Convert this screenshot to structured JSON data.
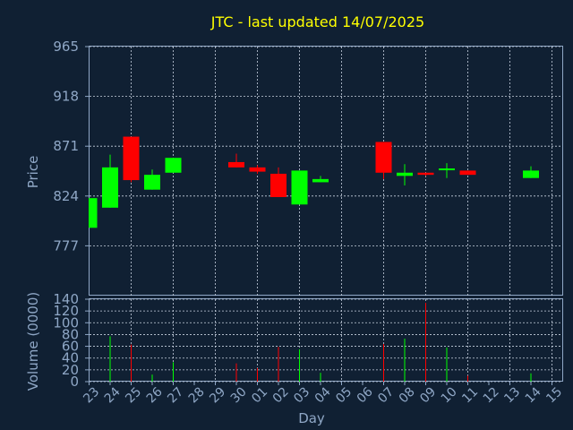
{
  "chart_data": [
    {
      "type": "candlestick",
      "title": "JTC - last updated 14/07/2025",
      "ylabel": "Price",
      "ylim": [
        730,
        965
      ],
      "yticks": [
        965,
        918,
        871,
        824,
        777
      ],
      "grid": true,
      "colors": {
        "up": "#00ff00",
        "down": "#ff0000",
        "grid": "#c8d2e0",
        "axis": "#8fa7c6"
      },
      "candles": [
        {
          "x": "23",
          "open": 794,
          "close": 822,
          "high": 822,
          "low": 794
        },
        {
          "x": "24",
          "open": 813,
          "close": 851,
          "high": 863,
          "low": 813
        },
        {
          "x": "25",
          "open": 880,
          "close": 839,
          "high": 880,
          "low": 837
        },
        {
          "x": "26",
          "open": 830,
          "close": 844,
          "high": 849,
          "low": 830
        },
        {
          "x": "27",
          "open": 846,
          "close": 860,
          "high": 860,
          "low": 846
        },
        {
          "x": "30",
          "open": 856,
          "close": 851,
          "high": 864,
          "low": 851
        },
        {
          "x": "01",
          "open": 851,
          "close": 847,
          "high": 853,
          "low": 845
        },
        {
          "x": "02",
          "open": 845,
          "close": 823,
          "high": 851,
          "low": 823
        },
        {
          "x": "03",
          "open": 816,
          "close": 848,
          "high": 848,
          "low": 816
        },
        {
          "x": "04",
          "open": 837,
          "close": 840,
          "high": 843,
          "low": 837
        },
        {
          "x": "07",
          "open": 875,
          "close": 846,
          "high": 875,
          "low": 840
        },
        {
          "x": "08",
          "open": 843,
          "close": 846,
          "high": 854,
          "low": 834
        },
        {
          "x": "09",
          "open": 846,
          "close": 844,
          "high": 846,
          "low": 843
        },
        {
          "x": "10",
          "open": 849,
          "close": 850,
          "high": 855,
          "low": 841
        },
        {
          "x": "11",
          "open": 848,
          "close": 844,
          "high": 848,
          "low": 844
        },
        {
          "x": "14",
          "open": 841,
          "close": 848,
          "high": 852,
          "low": 841
        }
      ]
    },
    {
      "type": "bar",
      "ylabel": "Volume (0000)",
      "xlabel": "Day",
      "ylim": [
        0,
        140
      ],
      "yticks": [
        0,
        20,
        40,
        60,
        80,
        100,
        120,
        140
      ],
      "categories": [
        "23",
        "24",
        "25",
        "26",
        "27",
        "30",
        "01",
        "02",
        "03",
        "04",
        "07",
        "08",
        "09",
        "10",
        "11",
        "14"
      ],
      "colors_by_category": [
        "green",
        "green",
        "red",
        "green",
        "green",
        "red",
        "red",
        "red",
        "green",
        "green",
        "red",
        "green",
        "red",
        "green",
        "red",
        "green"
      ],
      "values": [
        0,
        77,
        63,
        12,
        33,
        31,
        23,
        59,
        55,
        15,
        64,
        73,
        134,
        58,
        10,
        14
      ]
    }
  ],
  "x_axis_labels": [
    "23",
    "24",
    "25",
    "26",
    "27",
    "28",
    "29",
    "30",
    "01",
    "02",
    "03",
    "04",
    "05",
    "06",
    "07",
    "08",
    "09",
    "10",
    "11",
    "12",
    "13",
    "14",
    "15"
  ]
}
